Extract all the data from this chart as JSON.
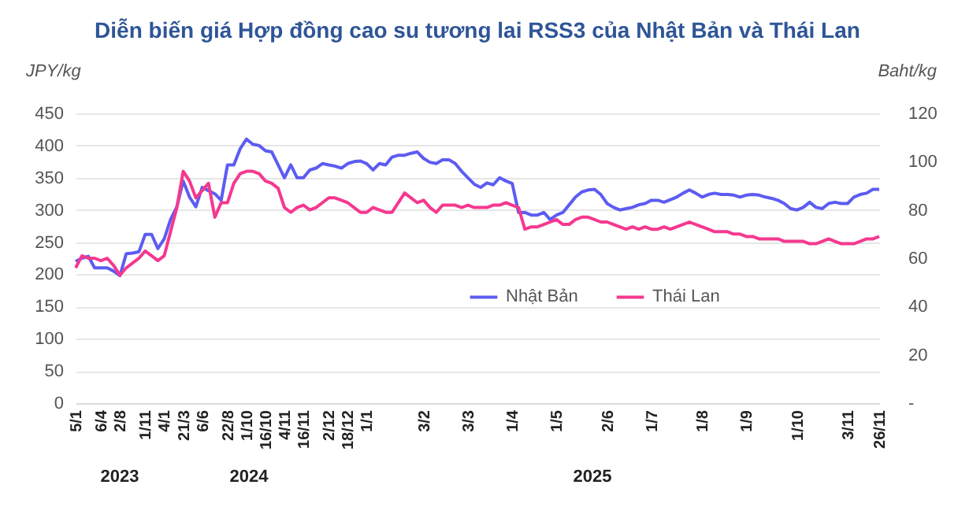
{
  "chart_data": {
    "type": "line",
    "title": "Diễn biến giá Hợp đồng cao su tương lai RSS3 của Nhật Bản và Thái Lan",
    "ylabel": "JPY/kg",
    "y2label": "Baht/kg",
    "categories": [
      "5/1",
      null,
      null,
      null,
      "6/4",
      null,
      null,
      "2/8",
      null,
      null,
      null,
      "1/11",
      null,
      null,
      "4/1",
      null,
      null,
      "21/3",
      null,
      null,
      "6/6",
      null,
      null,
      null,
      "22/8",
      null,
      null,
      "1/10",
      null,
      null,
      "16/10",
      null,
      null,
      "4/11",
      null,
      null,
      "16/11",
      null,
      null,
      null,
      "2/12",
      null,
      null,
      "18/12",
      null,
      null,
      "1/1",
      null,
      null,
      null,
      null,
      null,
      null,
      null,
      null,
      "3/2",
      null,
      null,
      null,
      null,
      null,
      null,
      "3/3",
      null,
      null,
      null,
      null,
      null,
      null,
      "1/4",
      null,
      null,
      null,
      null,
      null,
      null,
      "1/5",
      null,
      null,
      null,
      null,
      null,
      null,
      null,
      "2/6",
      null,
      null,
      null,
      null,
      null,
      null,
      "1/7",
      null,
      null,
      null,
      null,
      null,
      null,
      null,
      "1/8",
      null,
      null,
      null,
      null,
      null,
      null,
      "1/9",
      null,
      null,
      null,
      null,
      null,
      null,
      null,
      "1/10",
      null,
      null,
      null,
      null,
      null,
      null,
      null,
      "3/11",
      null,
      null,
      null,
      null,
      "26/11"
    ],
    "series": [
      {
        "name": "Nhật Bản",
        "color": "#5c5cf2",
        "values": [
          220,
          225,
          228,
          210,
          210,
          210,
          205,
          198,
          232,
          233,
          235,
          262,
          262,
          240,
          255,
          285,
          305,
          345,
          320,
          305,
          335,
          330,
          325,
          315,
          370,
          370,
          395,
          410,
          402,
          400,
          392,
          390,
          370,
          350,
          370,
          350,
          350,
          362,
          365,
          372,
          370,
          368,
          365,
          372,
          375,
          376,
          372,
          362,
          372,
          370,
          382,
          385,
          385,
          388,
          390,
          380,
          374,
          372,
          378,
          378,
          372,
          360,
          350,
          340,
          335,
          342,
          339,
          350,
          345,
          341,
          296,
          296,
          292,
          292,
          296,
          285,
          292,
          296,
          308,
          320,
          328,
          331,
          332,
          324,
          310,
          304,
          300,
          302,
          304,
          308,
          310,
          315,
          315,
          312,
          316,
          320,
          326,
          331,
          326,
          320,
          324,
          326,
          324,
          324,
          323,
          320,
          323,
          324,
          323,
          320,
          318,
          315,
          310,
          302,
          300,
          304,
          312,
          304,
          302,
          310,
          312,
          310,
          310,
          320,
          324,
          326,
          332,
          332
        ]
      },
      {
        "name": "Thái Lan",
        "color": "#f5388f",
        "axis": "y2",
        "values": [
          56,
          61,
          60,
          60,
          59,
          60,
          57,
          53,
          56,
          58,
          60,
          63,
          61,
          59,
          61,
          71,
          81,
          96,
          92,
          85,
          88,
          91,
          77,
          83,
          83,
          91,
          95,
          96,
          96,
          95,
          92,
          91,
          89,
          81,
          79,
          81,
          82,
          80,
          81,
          83,
          85,
          85,
          84,
          83,
          81,
          79,
          79,
          81,
          80,
          79,
          79,
          83,
          87,
          85,
          83,
          84,
          81,
          79,
          82,
          82,
          82,
          81,
          82,
          81,
          81,
          81,
          82,
          82,
          83,
          82,
          81,
          72,
          73,
          73,
          74,
          75,
          76,
          74,
          74,
          76,
          77,
          77,
          76,
          75,
          75,
          74,
          73,
          72,
          73,
          72,
          73,
          72,
          72,
          73,
          72,
          73,
          74,
          75,
          74,
          73,
          72,
          71,
          71,
          71,
          70,
          70,
          69,
          69,
          68,
          68,
          68,
          68,
          67,
          67,
          67,
          67,
          66,
          66,
          67,
          68,
          67,
          66,
          66,
          66,
          67,
          68,
          68,
          69
        ]
      }
    ],
    "ylim": [
      0,
      450
    ],
    "yticks": [
      0,
      50,
      100,
      150,
      200,
      250,
      300,
      350,
      400,
      450
    ],
    "y2lim": [
      0,
      120
    ],
    "y2ticks": [
      {
        "value": 0,
        "label": "-"
      },
      20,
      40,
      60,
      80,
      100,
      120
    ],
    "grid": "y",
    "legend": "bottom",
    "annotations": [
      "2023",
      "2024",
      "2025"
    ]
  }
}
